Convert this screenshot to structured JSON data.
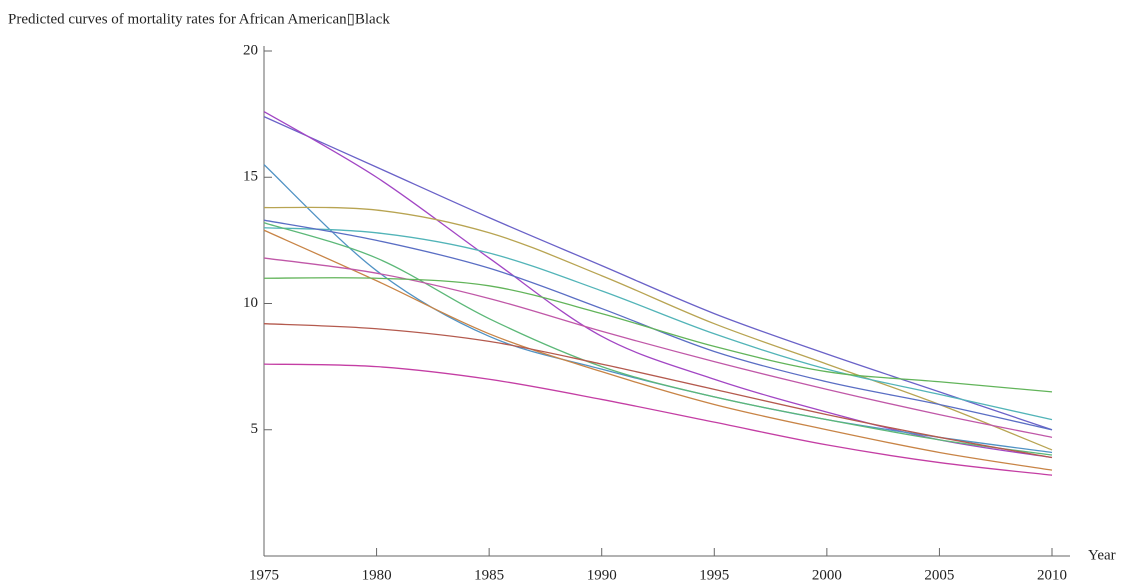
{
  "chart_data": {
    "type": "line",
    "title": "Predicted curves of mortality rates for African American▯Black",
    "x_label": "Year",
    "x": [
      1975,
      1980,
      1985,
      1990,
      1995,
      2000,
      2005,
      2010
    ],
    "xlim": [
      1975,
      2010
    ],
    "xticks": [
      1975,
      1980,
      1985,
      1990,
      1995,
      2000,
      2005,
      2010
    ],
    "ylim": [
      0,
      20
    ],
    "yticks": [
      5,
      10,
      15,
      20
    ],
    "series": [
      {
        "color": "#6a62c8",
        "values": [
          17.4,
          15.4,
          13.4,
          11.5,
          9.6,
          8.0,
          6.5,
          5.0
        ]
      },
      {
        "color": "#a246c4",
        "values": [
          17.6,
          15.0,
          11.8,
          8.7,
          7.0,
          5.7,
          4.6,
          3.9
        ]
      },
      {
        "color": "#5092c4",
        "values": [
          15.5,
          11.3,
          8.7,
          7.4,
          6.3,
          5.4,
          4.7,
          4.1
        ]
      },
      {
        "color": "#b8a452",
        "values": [
          13.8,
          13.7,
          12.8,
          11.1,
          9.2,
          7.6,
          6.0,
          4.2
        ]
      },
      {
        "color": "#52b4b8",
        "values": [
          13.0,
          12.8,
          12.0,
          10.5,
          8.8,
          7.4,
          6.4,
          5.4
        ]
      },
      {
        "color": "#5a6ec4",
        "values": [
          13.3,
          12.5,
          11.4,
          9.8,
          8.1,
          6.9,
          6.0,
          5.0
        ]
      },
      {
        "color": "#5cb878",
        "values": [
          13.2,
          11.8,
          9.4,
          7.5,
          6.3,
          5.4,
          4.6,
          4.0
        ]
      },
      {
        "color": "#c88446",
        "values": [
          12.9,
          10.9,
          8.8,
          7.3,
          6.0,
          5.0,
          4.1,
          3.4
        ]
      },
      {
        "color": "#c058a8",
        "values": [
          11.8,
          11.2,
          10.2,
          8.9,
          7.7,
          6.6,
          5.6,
          4.7
        ]
      },
      {
        "color": "#62b45a",
        "values": [
          11.0,
          11.0,
          10.7,
          9.6,
          8.3,
          7.3,
          6.9,
          6.5
        ]
      },
      {
        "color": "#b45a4e",
        "values": [
          9.2,
          9.0,
          8.5,
          7.6,
          6.6,
          5.6,
          4.7,
          3.9
        ]
      },
      {
        "color": "#c43ea4",
        "values": [
          7.6,
          7.5,
          7.0,
          6.2,
          5.3,
          4.4,
          3.7,
          3.2
        ]
      }
    ]
  }
}
